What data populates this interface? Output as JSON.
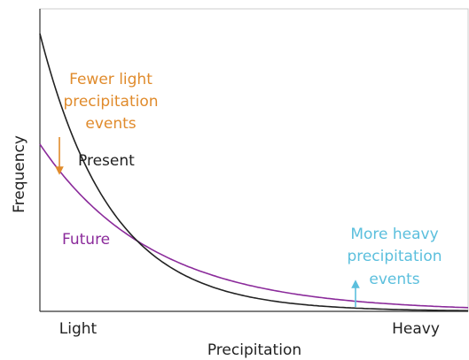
{
  "axes": {
    "x_label": "Precipitation",
    "x_ends": [
      "Light",
      "Heavy"
    ],
    "y_label": "Frequency"
  },
  "curves": {
    "present": "Present",
    "future": "Future"
  },
  "annotations": {
    "fewer": [
      "Fewer light",
      "precipitation",
      "events"
    ],
    "more": [
      "More heavy",
      "precipitation",
      "events"
    ]
  }
}
